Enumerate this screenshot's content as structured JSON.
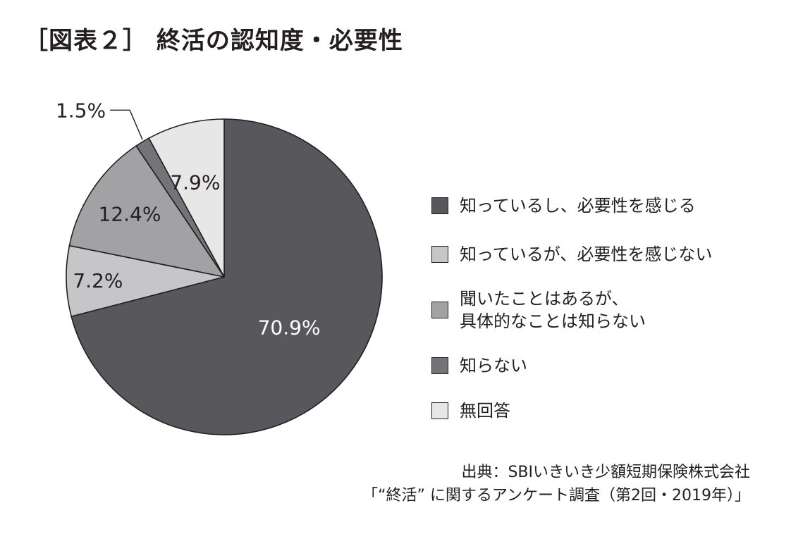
{
  "title": "［図表２］ 終活の認知度・必要性",
  "chart_data": {
    "type": "pie",
    "title": "",
    "slices": [
      {
        "label": "知っているし、必要性を感じる",
        "value": 70.9,
        "value_label": "70.9%",
        "color": "#58575b",
        "text_color": "#ffffff"
      },
      {
        "label": "知っているが、必要性を感じない",
        "value": 7.2,
        "value_label": "7.2%",
        "color": "#c6c6c8",
        "text_color": "#231f20"
      },
      {
        "label": "聞いたことはあるが、\n具体的なことは知らない",
        "value": 12.4,
        "value_label": "12.4%",
        "color": "#a2a2a5",
        "text_color": "#231f20"
      },
      {
        "label": "知らない",
        "value": 1.5,
        "value_label": "1.5%",
        "color": "#747377",
        "text_color": "#231f20"
      },
      {
        "label": "無回答",
        "value": 7.9,
        "value_label": "7.9%",
        "color": "#e7e7e8",
        "text_color": "#231f20"
      }
    ]
  },
  "source": {
    "line1": "出典：SBIいきいき少額短期保険株式会社",
    "line2": "「“終活” に関するアンケート調査（第2回・2019年）」"
  }
}
